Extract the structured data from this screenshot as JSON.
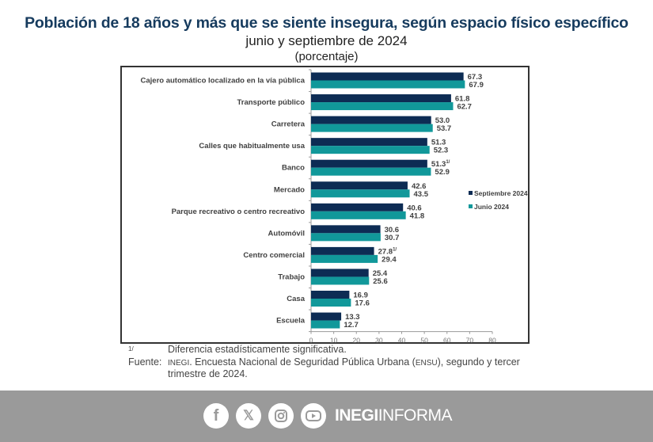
{
  "header": {
    "title": "Población de 18 años y más que se siente insegura, según espacio físico específico",
    "subtitle": "junio y septiembre de 2024",
    "unit": "(porcentaje)"
  },
  "chart_data": {
    "type": "bar",
    "orientation": "horizontal",
    "title": "Población de 18 años y más que se siente insegura, según espacio físico específico",
    "subtitle": "junio y septiembre de 2024",
    "ylabel": "(porcentaje)",
    "xlim": [
      0,
      80
    ],
    "xticks": [
      0,
      10,
      20,
      30,
      40,
      50,
      60,
      70,
      80
    ],
    "legend_position": "right",
    "categories": [
      "Cajero automático localizado en la vía pública",
      "Transporte público",
      "Carretera",
      "Calles que habitualmente usa",
      "Banco",
      "Mercado",
      "Parque recreativo o centro recreativo",
      "Automóvil",
      "Centro comercial",
      "Trabajo",
      "Casa",
      "Escuela"
    ],
    "series": [
      {
        "name": "Septiembre 2024",
        "color": "#0d2c54",
        "values": [
          67.3,
          61.8,
          53.0,
          51.3,
          51.3,
          42.6,
          40.6,
          30.6,
          27.8,
          25.4,
          16.9,
          13.3
        ],
        "labels": [
          "67.3",
          "61.8",
          "53.0",
          "51.3",
          "51.3",
          "42.6",
          "40.6",
          "30.6",
          "27.8",
          "25.4",
          "16.9",
          "13.3"
        ],
        "significant": [
          false,
          false,
          false,
          false,
          true,
          false,
          false,
          false,
          true,
          false,
          false,
          false
        ]
      },
      {
        "name": "Junio 2024",
        "color": "#11989a",
        "values": [
          67.9,
          62.7,
          53.7,
          52.3,
          52.9,
          43.5,
          41.8,
          30.7,
          29.4,
          25.6,
          17.6,
          12.7
        ],
        "labels": [
          "67.9",
          "62.7",
          "53.7",
          "52.3",
          "52.9",
          "43.5",
          "41.8",
          "30.7",
          "29.4",
          "25.6",
          "17.6",
          "12.7"
        ]
      }
    ],
    "significance_marker": "1/"
  },
  "footnotes": {
    "marker": "1/",
    "note": "Diferencia estadísticamente significativa.",
    "source_label": "Fuente:",
    "source_org": "INEGI",
    "source_line1": ". Encuesta Nacional de Seguridad Pública Urbana (",
    "source_abbr": "ENSU",
    "source_line1_end": "), segundo y tercer",
    "source_line2": "trimestre de 2024."
  },
  "footer": {
    "brand_bold": "INEGI",
    "brand_light": "INFORMA",
    "social": [
      "facebook-icon",
      "x-icon",
      "instagram-icon",
      "youtube-icon"
    ],
    "facebook_glyph": "f",
    "x_glyph": "𝕏"
  }
}
